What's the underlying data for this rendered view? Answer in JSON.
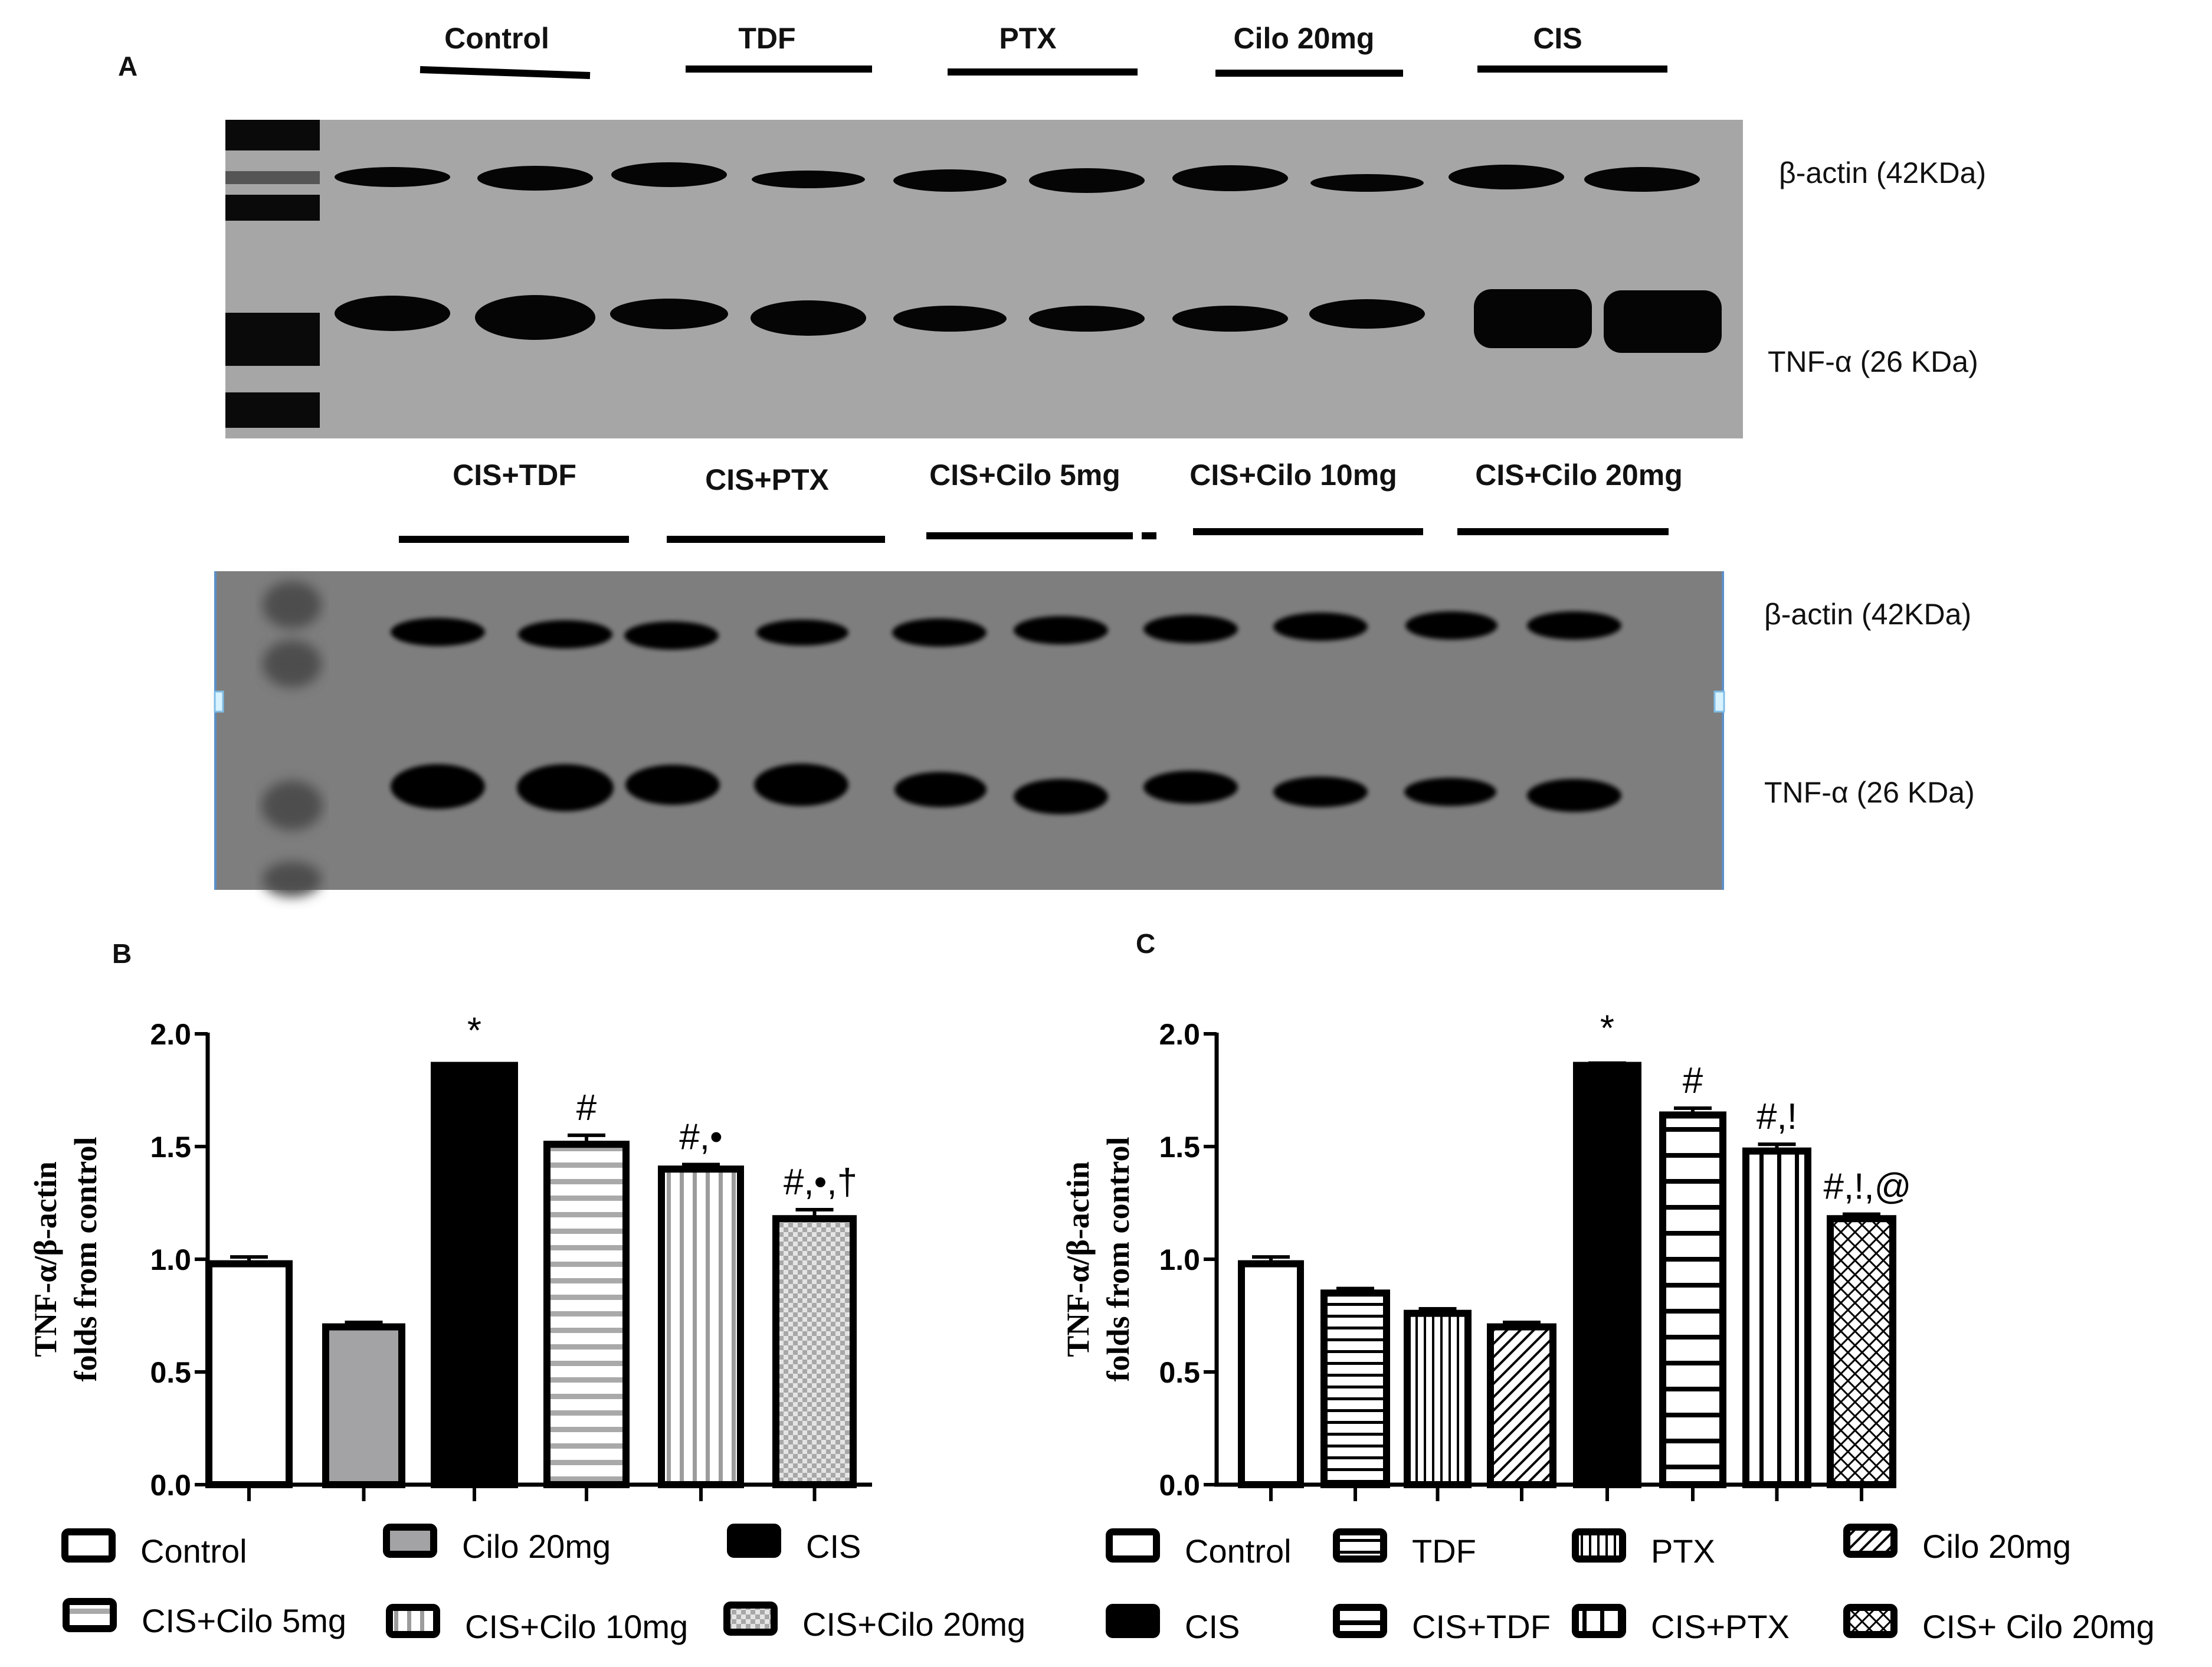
{
  "panels": {
    "A": {
      "label": "A"
    },
    "B": {
      "label": "B"
    },
    "C": {
      "label": "C"
    }
  },
  "blot_top": {
    "lane_groups": [
      "Control",
      "TDF",
      "PTX",
      "Cilo 20mg",
      "CIS"
    ],
    "protein_labels": [
      "β-actin (42KDa)",
      "TNF-α (26 KDa)"
    ],
    "background": "#a6a6a6"
  },
  "blot_bottom": {
    "lane_groups": [
      "CIS+TDF",
      "CIS+PTX",
      "CIS+Cilo 5mg",
      "CIS+Cilo 10mg",
      "CIS+Cilo 20mg"
    ],
    "protein_labels": [
      "β-actin (42KDa)",
      "TNF-α (26 KDa)"
    ],
    "background": "#7d7d7d",
    "border_color": "#5b8fc7"
  },
  "chart_data": [
    {
      "panel": "B",
      "type": "bar",
      "title": "",
      "xlabel": "",
      "ylabel": "TNF-α/β-actin folds from control",
      "ylabel_lines": [
        "TNF-α/β-actin",
        "folds from control"
      ],
      "ylim": [
        0,
        2.0
      ],
      "yticks": [
        "0.0",
        "0.5",
        "1.0",
        "1.5",
        "2.0"
      ],
      "grid": false,
      "legend_position": "bottom",
      "categories": [
        "Control",
        "Cilo 20mg",
        "CIS",
        "CIS+Cilo 5mg",
        "CIS+Cilo 10mg",
        "CIS+Cilo 20mg"
      ],
      "values": [
        0.98,
        0.7,
        1.86,
        1.51,
        1.4,
        1.18
      ],
      "errors": [
        0.03,
        0.02,
        0.0,
        0.04,
        0.02,
        0.04
      ],
      "annotations": [
        "",
        "",
        "*",
        "#",
        "#,•",
        "#,•,†"
      ],
      "patterns": [
        "white",
        "gray",
        "black",
        "horizontal-gray",
        "vertical-gray",
        "checker"
      ],
      "legend": [
        "Control",
        "Cilo 20mg",
        "CIS",
        "CIS+Cilo 5mg",
        "CIS+Cilo 10mg",
        "CIS+Cilo 20mg"
      ]
    },
    {
      "panel": "C",
      "type": "bar",
      "title": "",
      "xlabel": "",
      "ylabel": "TNF-α/β-actin folds from control",
      "ylabel_lines": [
        "TNF-α/β-actin",
        "folds from control"
      ],
      "ylim": [
        0,
        2.0
      ],
      "yticks": [
        "0.0",
        "0.5",
        "1.0",
        "1.5",
        "2.0"
      ],
      "grid": false,
      "legend_position": "bottom",
      "categories": [
        "Control",
        "TDF",
        "PTX",
        "Cilo 20mg",
        "CIS",
        "CIS+TDF",
        "CIS+PTX",
        "CIS+ Cilo 20mg"
      ],
      "values": [
        0.98,
        0.85,
        0.76,
        0.7,
        1.86,
        1.64,
        1.48,
        1.18
      ],
      "errors": [
        0.03,
        0.02,
        0.02,
        0.02,
        0.01,
        0.03,
        0.03,
        0.02
      ],
      "annotations": [
        "",
        "",
        "",
        "",
        "*",
        "#",
        "#,!",
        "#,!,@"
      ],
      "patterns": [
        "white",
        "hlines",
        "vlines",
        "diag",
        "black",
        "hlines-wide",
        "vlines-wide",
        "crosshatch"
      ],
      "legend": [
        "Control",
        "TDF",
        "PTX",
        "Cilo 20mg",
        "CIS",
        "CIS+TDF",
        "CIS+PTX",
        "CIS+ Cilo 20mg"
      ]
    }
  ]
}
